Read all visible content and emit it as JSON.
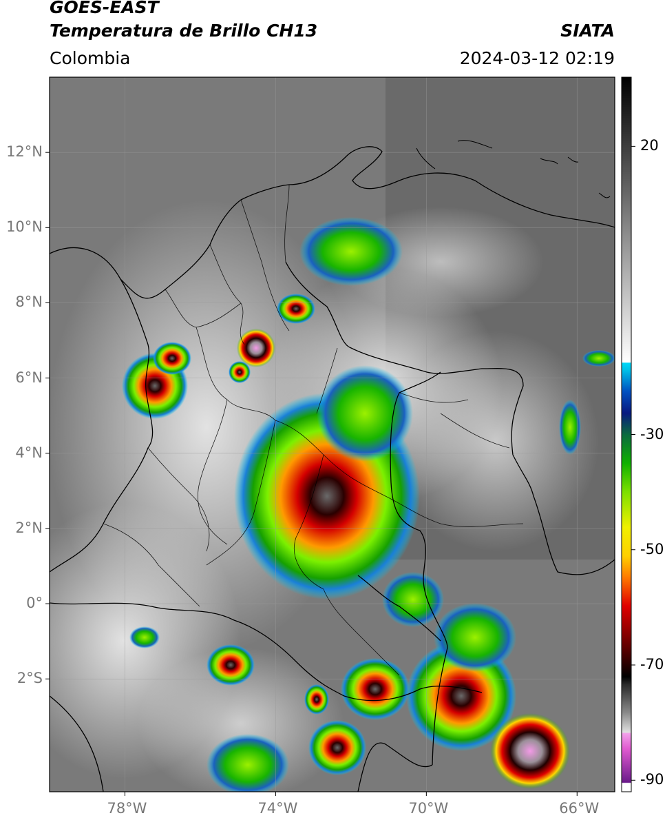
{
  "header": {
    "satellite": "GOES-EAST",
    "product": "Temperatura de Brillo CH13",
    "organization": "SIATA",
    "region": "Colombia",
    "datetime": "2024-03-12 02:19"
  },
  "map": {
    "lat_range": [
      -5,
      14
    ],
    "lon_range": [
      -80,
      -65
    ],
    "lat_labels": [
      "12°N",
      "10°N",
      "8°N",
      "6°N",
      "4°N",
      "2°N",
      "0°",
      "2°S"
    ],
    "lon_labels": [
      "78°W",
      "74°W",
      "70°W",
      "66°W"
    ],
    "grid": true
  },
  "colorbar": {
    "ticks": [
      "20",
      "-30",
      "-50",
      "-70",
      "-90"
    ],
    "tick_values": [
      20,
      -30,
      -50,
      -70,
      -90
    ],
    "range": [
      -92,
      32
    ]
  }
}
